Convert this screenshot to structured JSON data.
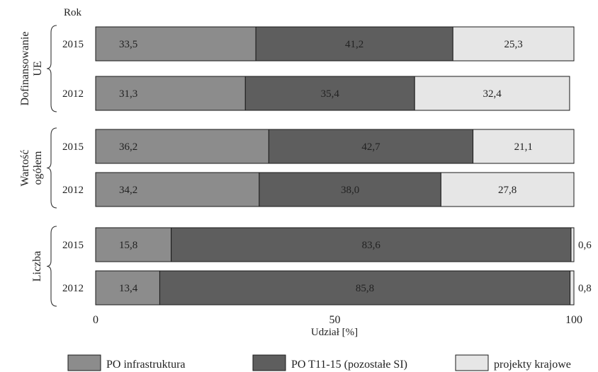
{
  "chart_data": {
    "type": "bar",
    "orientation": "horizontal",
    "stacked": true,
    "y_header": "Rok",
    "xlabel": "Udział [%]",
    "xlim": [
      0,
      100
    ],
    "xticks": [
      "0",
      "50",
      "100"
    ],
    "grid": false,
    "legend_position": "bottom",
    "groups": [
      {
        "label": "Dofinansowanie UE",
        "rows": [
          {
            "year": "2015",
            "values": [
              33.5,
              41.2,
              25.3
            ],
            "labels": [
              "33,5",
              "41,2",
              "25,3"
            ]
          },
          {
            "year": "2012",
            "values": [
              31.3,
              35.4,
              32.4
            ],
            "labels": [
              "31,3",
              "35,4",
              "32,4"
            ]
          }
        ]
      },
      {
        "label": "Wartość ogółem",
        "rows": [
          {
            "year": "2015",
            "values": [
              36.2,
              42.7,
              21.1
            ],
            "labels": [
              "36,2",
              "42,7",
              "21,1"
            ]
          },
          {
            "year": "2012",
            "values": [
              34.2,
              38.0,
              27.8
            ],
            "labels": [
              "34,2",
              "38,0",
              "27,8"
            ]
          }
        ]
      },
      {
        "label": "Liczba",
        "rows": [
          {
            "year": "2015",
            "values": [
              15.8,
              83.6,
              0.6
            ],
            "labels": [
              "15,8",
              "83,6",
              "0,6"
            ]
          },
          {
            "year": "2012",
            "values": [
              13.4,
              85.8,
              0.8
            ],
            "labels": [
              "13,4",
              "85,8",
              "0,8"
            ]
          }
        ]
      }
    ],
    "series": [
      {
        "name": "PO infrastruktura",
        "color": "#8c8c8c"
      },
      {
        "name": "PO T11-15 (pozostałe SI)",
        "color": "#5e5e5e"
      },
      {
        "name": "projekty krajowe",
        "color": "#e6e6e6"
      }
    ]
  }
}
